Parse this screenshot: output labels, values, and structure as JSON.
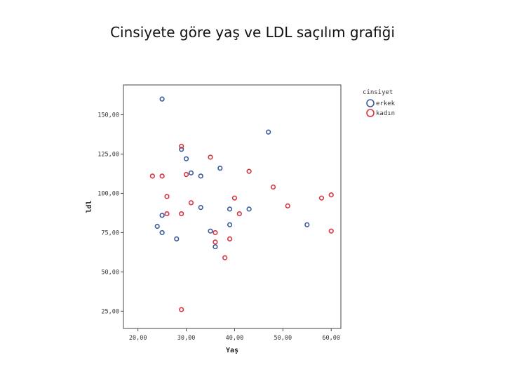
{
  "slide": {
    "title": "Cinsiyete göre yaş ve LDL saçılım grafiği"
  },
  "chart_data": {
    "type": "scatter",
    "title": "",
    "xlabel": "Yaş",
    "ylabel": "ldl",
    "xlim": [
      17,
      62
    ],
    "ylim": [
      14,
      169
    ],
    "x_ticks": [
      20,
      30,
      40,
      50,
      60
    ],
    "x_tick_labels": [
      "20,00",
      "30,00",
      "40,00",
      "50,00",
      "60,00"
    ],
    "y_ticks": [
      25,
      50,
      75,
      100,
      125,
      150
    ],
    "y_tick_labels": [
      "25,00",
      "50,00",
      "75,00",
      "100,00",
      "125,00",
      "150,00"
    ],
    "grid": false,
    "legend_title": "cinsiyet",
    "legend_position": "right",
    "series": [
      {
        "name": "erkek",
        "color": "#3b5a9d",
        "points": [
          [
            25,
            160
          ],
          [
            29,
            128
          ],
          [
            30,
            122
          ],
          [
            31,
            113
          ],
          [
            33,
            111
          ],
          [
            37,
            116
          ],
          [
            47,
            139
          ],
          [
            25,
            86
          ],
          [
            24,
            79
          ],
          [
            25,
            75
          ],
          [
            28,
            71
          ],
          [
            33,
            91
          ],
          [
            35,
            76
          ],
          [
            36,
            66
          ],
          [
            39,
            90
          ],
          [
            39,
            80
          ],
          [
            43,
            90
          ],
          [
            55,
            80
          ]
        ]
      },
      {
        "name": "kadın",
        "color": "#d6333f",
        "points": [
          [
            29,
            130
          ],
          [
            35,
            123
          ],
          [
            43,
            114
          ],
          [
            23,
            111
          ],
          [
            25,
            111
          ],
          [
            30,
            112
          ],
          [
            26,
            98
          ],
          [
            31,
            94
          ],
          [
            26,
            87
          ],
          [
            29,
            87
          ],
          [
            36,
            75
          ],
          [
            36,
            69
          ],
          [
            39,
            71
          ],
          [
            38,
            59
          ],
          [
            40,
            97
          ],
          [
            41,
            87
          ],
          [
            48,
            104
          ],
          [
            51,
            92
          ],
          [
            58,
            97
          ],
          [
            60,
            99
          ],
          [
            60,
            76
          ],
          [
            29,
            26
          ]
        ]
      }
    ]
  }
}
